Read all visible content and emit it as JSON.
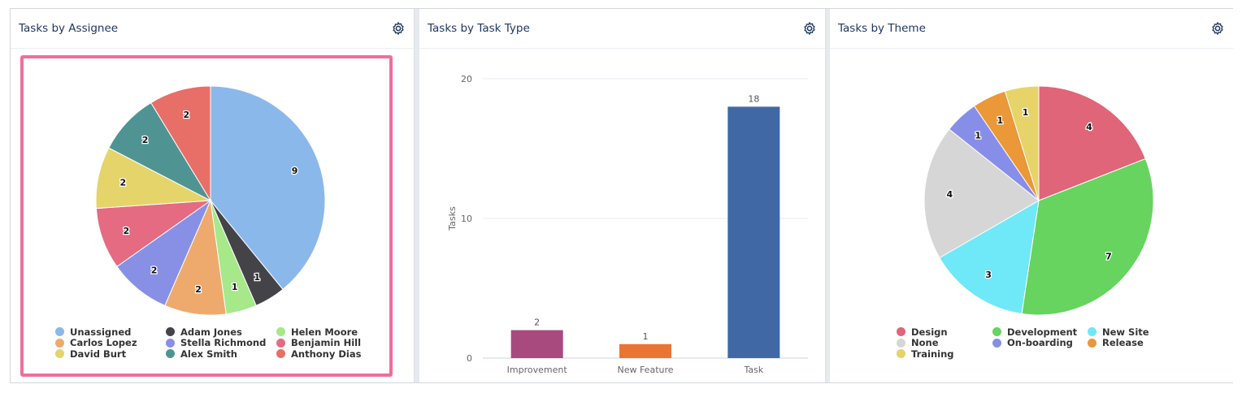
{
  "panels": [
    {
      "title": "Tasks by Assignee"
    },
    {
      "title": "Tasks by Task Type"
    },
    {
      "title": "Tasks by Theme"
    }
  ],
  "icons": {
    "settings": "gear-icon"
  },
  "chart_data": [
    {
      "type": "pie",
      "title": "Tasks by Assignee",
      "labels": [
        "Unassigned",
        "Adam Jones",
        "Helen Moore",
        "Carlos Lopez",
        "Stella Richmond",
        "Benjamin Hill",
        "David Burt",
        "Alex Smith",
        "Anthony Dias"
      ],
      "values": [
        9,
        1,
        1,
        2,
        2,
        2,
        2,
        2,
        2
      ],
      "colors": [
        "#8bb8ea",
        "#444448",
        "#a6e88a",
        "#eeaa6c",
        "#8890e6",
        "#e46b82",
        "#e5d46a",
        "#4f9492",
        "#e86e68"
      ],
      "legend": "bottom"
    },
    {
      "type": "bar",
      "title": "Tasks by Task Type",
      "categories": [
        "Improvement",
        "New Feature",
        "Task"
      ],
      "values": [
        2,
        1,
        18
      ],
      "colors": [
        "#a84a7e",
        "#ea7532",
        "#4068a5"
      ],
      "ylabel": "Tasks",
      "ylim": [
        0,
        20
      ],
      "yticks": [
        0,
        10,
        20
      ],
      "grid": true
    },
    {
      "type": "pie",
      "title": "Tasks by Theme",
      "labels": [
        "Design",
        "Development",
        "New Site",
        "None",
        "On-boarding",
        "Release",
        "Training"
      ],
      "values": [
        4,
        7,
        3,
        4,
        1,
        1,
        1
      ],
      "colors": [
        "#e06578",
        "#66d45e",
        "#6fe8f7",
        "#d6d6d6",
        "#878ee8",
        "#ea9838",
        "#e6d46a"
      ],
      "pie_order": [
        0,
        1,
        2,
        3,
        4,
        5,
        6
      ],
      "legend": "bottom"
    }
  ]
}
